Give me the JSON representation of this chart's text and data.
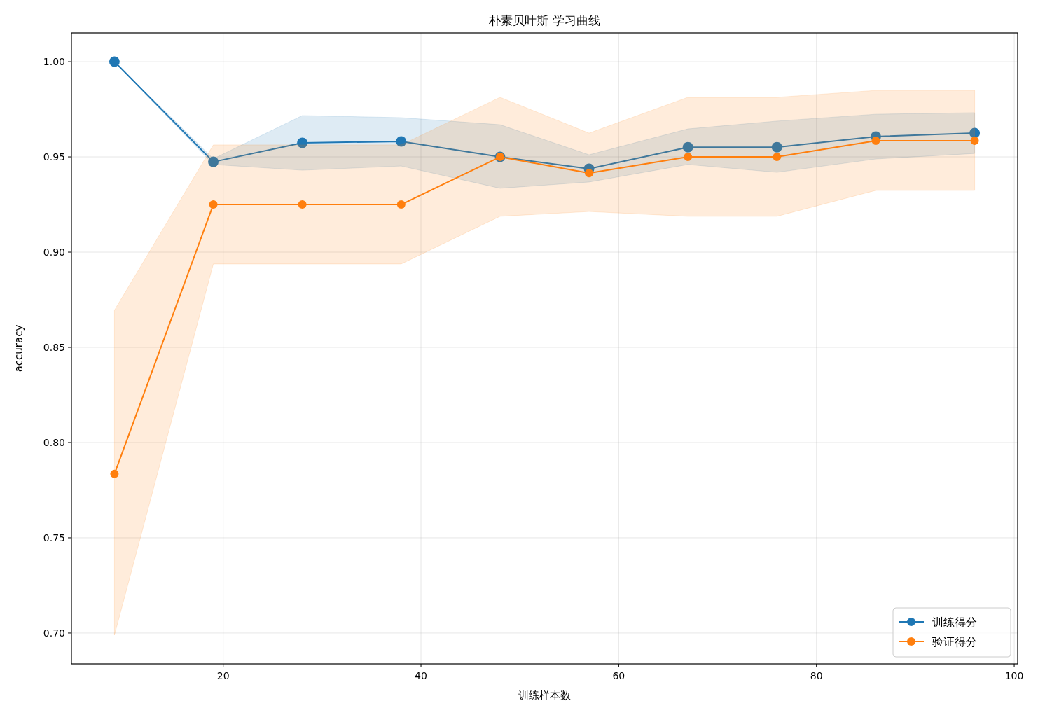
{
  "chart_data": {
    "type": "line",
    "title": "朴素贝叶斯 学习曲线",
    "xlabel": "训练样本数",
    "ylabel": "accuracy",
    "x": [
      9,
      19,
      28,
      38,
      48,
      57,
      67,
      76,
      86,
      96
    ],
    "series": [
      {
        "name": "训练得分",
        "color": "#1f77b4",
        "values": [
          1.0,
          0.9474,
          0.9574,
          0.9581,
          0.95,
          0.9438,
          0.9551,
          0.9551,
          0.9607,
          0.9625
        ],
        "lower": [
          1.0,
          0.946,
          0.943,
          0.9452,
          0.9335,
          0.9368,
          0.946,
          0.9419,
          0.9489,
          0.9518
        ],
        "upper": [
          1.0,
          0.949,
          0.9717,
          0.9706,
          0.9669,
          0.9511,
          0.9647,
          0.9688,
          0.9724,
          0.9732
        ]
      },
      {
        "name": "验证得分",
        "color": "#ff7f0e",
        "values": [
          0.7835,
          0.925,
          0.925,
          0.925,
          0.95,
          0.9415,
          0.95,
          0.95,
          0.9585,
          0.9585
        ],
        "lower": [
          0.6989,
          0.8938,
          0.8938,
          0.8938,
          0.9188,
          0.9213,
          0.9188,
          0.9188,
          0.9324,
          0.9324
        ],
        "upper": [
          0.8695,
          0.9563,
          0.9563,
          0.9563,
          0.9813,
          0.9625,
          0.9813,
          0.9813,
          0.9849,
          0.9849
        ]
      }
    ],
    "xlim": [
      4.65,
      100.35
    ],
    "ylim": [
      0.6838,
      1.0151
    ],
    "xticks": [
      20,
      40,
      60,
      80,
      100
    ],
    "yticks": [
      {
        "value": 0.7,
        "label": "0.70"
      },
      {
        "value": 0.75,
        "label": "0.75"
      },
      {
        "value": 0.8,
        "label": "0.80"
      },
      {
        "value": 0.85,
        "label": "0.85"
      },
      {
        "value": 0.9,
        "label": "0.90"
      },
      {
        "value": 0.95,
        "label": "0.95"
      },
      {
        "value": 1.0,
        "label": "1.00"
      }
    ],
    "grid": true,
    "legend": "bottom right",
    "marker": "circle"
  }
}
